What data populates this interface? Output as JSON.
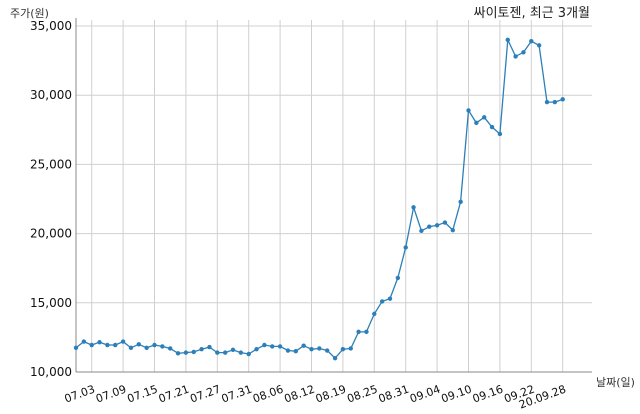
{
  "chart_data": {
    "type": "line",
    "title": "싸이토젠, 최근 3개월",
    "ylabel": "주가(원)",
    "xlabel": "날짜(일)",
    "ylim": [
      10000,
      35000
    ],
    "yticks": [
      10000,
      15000,
      20000,
      25000,
      30000,
      35000
    ],
    "ytick_labels": [
      "10,000",
      "15,000",
      "20,000",
      "25,000",
      "30,000",
      "35,000"
    ],
    "grid": true,
    "line_color": "#2c7fb8",
    "x_tick_labels": [
      "07.03",
      "07.09",
      "07.15",
      "07.21",
      "07.27",
      "07.31",
      "08.06",
      "08.12",
      "08.19",
      "08.25",
      "08.31",
      "09.04",
      "09.10",
      "09.16",
      "09.22",
      "20.09.28"
    ],
    "x_tick_index": [
      2,
      6,
      10,
      14,
      18,
      22,
      26,
      30,
      34,
      38,
      42,
      46,
      50,
      54,
      58,
      62
    ],
    "values": [
      11750,
      12200,
      11950,
      12150,
      11950,
      11950,
      12200,
      11750,
      12000,
      11750,
      11950,
      11850,
      11700,
      11350,
      11400,
      11450,
      11650,
      11800,
      11400,
      11400,
      11600,
      11400,
      11300,
      11650,
      11950,
      11850,
      11850,
      11550,
      11500,
      11900,
      11650,
      11700,
      11550,
      11000,
      11650,
      11700,
      12900,
      12900,
      14200,
      15100,
      15300,
      16800,
      19000,
      21900,
      20200,
      20500,
      20600,
      20800,
      20250,
      22300,
      28900,
      28000,
      28400,
      27700,
      27200,
      34000,
      32800,
      33100,
      33900,
      33600,
      29500,
      29500,
      29700
    ]
  }
}
